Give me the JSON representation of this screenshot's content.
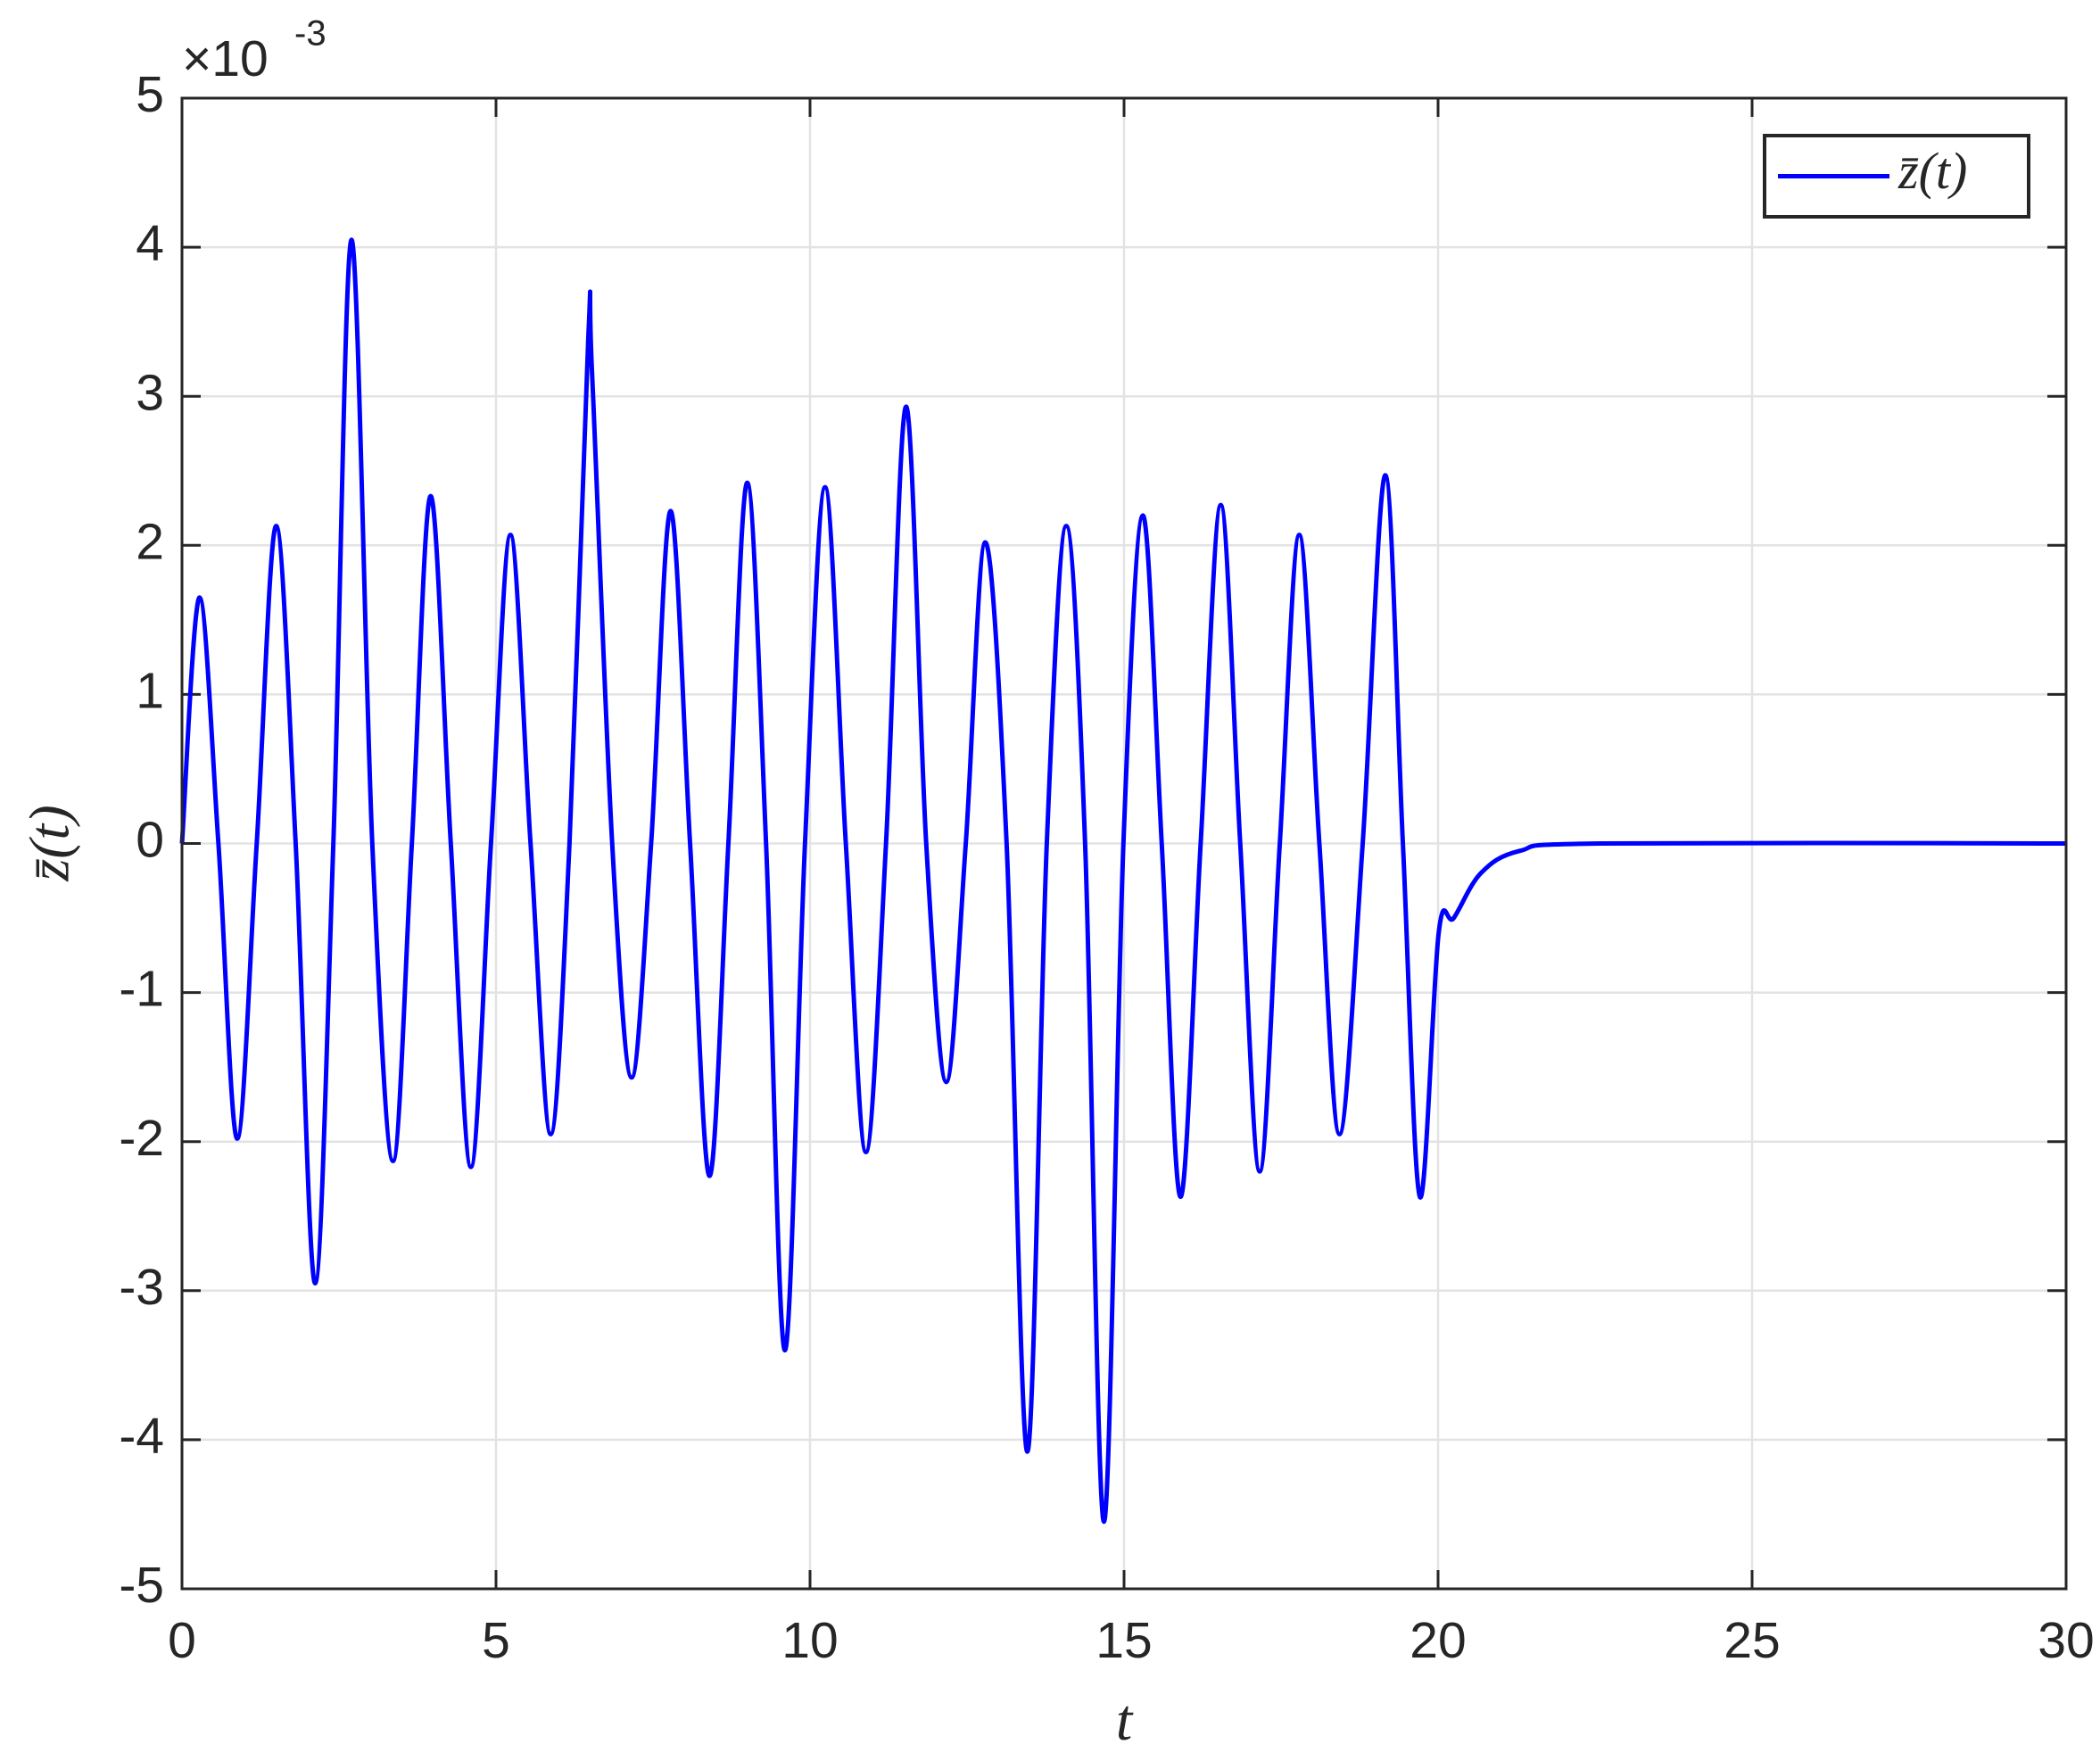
{
  "chart_data": {
    "type": "line",
    "x_label": "t",
    "y_label": "z̄(t)",
    "y_multiplier": "×10",
    "y_exponent": "-3",
    "xlim": [
      0,
      30
    ],
    "xticks": [
      0,
      5,
      10,
      15,
      20,
      25,
      30
    ],
    "ylim": [
      -5,
      5
    ],
    "yticks": [
      -5,
      -4,
      -3,
      -2,
      -1,
      0,
      1,
      2,
      3,
      4,
      5
    ],
    "grid": true,
    "legend": "upper right",
    "x": [
      0,
      0.28,
      0.58,
      0.88,
      1.19,
      1.5,
      1.81,
      2.12,
      2.41,
      2.7,
      3.03,
      3.36,
      3.66,
      3.96,
      4.28,
      4.6,
      4.92,
      5.23,
      5.55,
      5.87,
      6.17,
      6.47,
      6.53,
      6.85,
      7.16,
      7.47,
      7.78,
      8.09,
      8.4,
      8.7,
      9.0,
      9.3,
      9.6,
      9.92,
      10.24,
      10.57,
      10.89,
      11.21,
      11.53,
      11.85,
      12.17,
      12.48,
      12.79,
      13.13,
      13.46,
      13.77,
      14.08,
      14.38,
      14.68,
      14.99,
      15.3,
      15.6,
      15.9,
      16.22,
      16.54,
      16.85,
      17.16,
      17.48,
      17.79,
      18.11,
      18.43,
      18.8,
      19.16,
      19.44,
      19.71,
      20.01,
      20.25,
      20.68,
      21.3,
      22.6,
      30
    ],
    "series": [
      {
        "name": "z̄(t)",
        "color": "#0000ff",
        "values": [
          0,
          1.65,
          0,
          -1.98,
          0,
          2.13,
          0,
          -2.95,
          0,
          4.05,
          0,
          -2.13,
          0,
          2.33,
          0,
          -2.17,
          0,
          2.07,
          0,
          -1.95,
          0,
          3.4,
          3.15,
          0,
          -1.57,
          0,
          2.23,
          0,
          -2.23,
          0,
          2.42,
          0,
          -3.4,
          0,
          2.39,
          0,
          -2.07,
          0,
          2.93,
          0,
          -1.6,
          0,
          2.02,
          0,
          -4.08,
          0,
          2.13,
          0,
          -4.55,
          0,
          2.2,
          0,
          -2.37,
          0,
          2.27,
          0,
          -2.2,
          0,
          2.07,
          0,
          -1.95,
          0,
          2.47,
          0,
          -2.37,
          -0.6,
          -0.5,
          -0.2,
          -0.05,
          0,
          0
        ]
      }
    ]
  }
}
